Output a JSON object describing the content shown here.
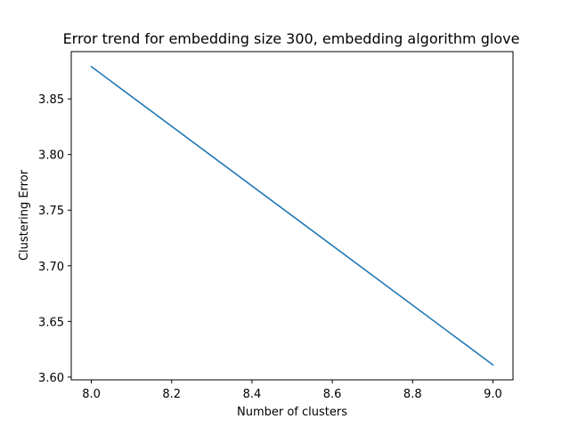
{
  "chart_data": {
    "type": "line",
    "title": "Error trend for embedding size 300, embedding algorithm glove",
    "xlabel": "Number of clusters",
    "ylabel": "Clustering Error",
    "xlim": [
      7.95,
      9.05
    ],
    "ylim": [
      3.5975,
      3.8925
    ],
    "x_ticks": [
      8.0,
      8.2,
      8.4,
      8.6,
      8.8,
      9.0
    ],
    "x_tick_labels": [
      "8.0",
      "8.2",
      "8.4",
      "8.6",
      "8.8",
      "9.0"
    ],
    "y_ticks": [
      3.6,
      3.65,
      3.7,
      3.75,
      3.8,
      3.85
    ],
    "y_tick_labels": [
      "3.60",
      "3.65",
      "3.70",
      "3.75",
      "3.80",
      "3.85"
    ],
    "grid": false,
    "legend": "none",
    "series": [
      {
        "color": "#1f77b4",
        "x": [
          8,
          9
        ],
        "values": [
          3.879,
          3.611
        ]
      }
    ]
  }
}
